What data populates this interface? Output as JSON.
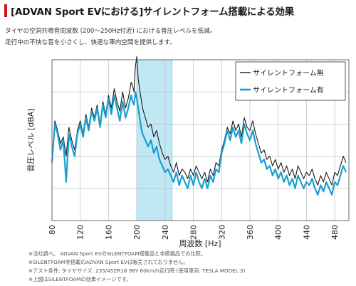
{
  "title": "[ADVAN Sport EVにおける]サイレントフォーム搭載による効果",
  "description": [
    "タイヤの空洞共鳴音周波数 (200〜250Hz付近) における音圧レベルを低減。",
    "走行中の不快な音を小さくし、快適な車内空間を提供します。"
  ],
  "footnotes": [
    "※当社調べ。 ADVAN Sport EVのSILENTFOAM搭載品と非搭載品での比較。",
    "※SILENTFOAM非搭載のADVAN Sport EVは販売されておりません。",
    "※テスト条件: タイヤサイズ: 235/45ZR18 98Y 60km/h走行時 (使用車両: TESLA MODEL 3)",
    "※上図はSILENTFOAMの効果イメージです。"
  ],
  "colors": {
    "accent": "#d0121b",
    "series_without": "#1a1a1a",
    "series_with": "#1a9fd0",
    "highlight_band": "#bfe8f4"
  },
  "chart_data": {
    "type": "line",
    "xlabel": "周波数 [Hz]",
    "ylabel": "音圧レベル [dBA]",
    "xlim": [
      80,
      500
    ],
    "xticks": [
      80,
      120,
      160,
      200,
      240,
      280,
      320,
      360,
      400,
      440,
      480
    ],
    "ylim": [
      0,
      100
    ],
    "yticks_shown": false,
    "grid": true,
    "legend_position": "top-right",
    "highlight_range": [
      200,
      250
    ],
    "series": [
      {
        "name": "サイレントフォーム無",
        "x": [
          80,
          84,
          88,
          92,
          96,
          100,
          104,
          108,
          112,
          116,
          120,
          124,
          128,
          132,
          136,
          140,
          144,
          148,
          152,
          156,
          160,
          164,
          168,
          172,
          176,
          180,
          184,
          188,
          192,
          194,
          196,
          198,
          200,
          202,
          204,
          206,
          208,
          212,
          216,
          220,
          224,
          228,
          232,
          236,
          240,
          244,
          248,
          252,
          256,
          260,
          264,
          268,
          272,
          276,
          280,
          284,
          288,
          292,
          296,
          300,
          304,
          308,
          312,
          316,
          320,
          324,
          328,
          332,
          336,
          340,
          344,
          348,
          352,
          356,
          360,
          364,
          368,
          372,
          376,
          380,
          384,
          388,
          392,
          396,
          400,
          404,
          408,
          412,
          416,
          420,
          424,
          428,
          432,
          436,
          440,
          444,
          448,
          452,
          456,
          460,
          464,
          468,
          472,
          476,
          480,
          484,
          488,
          492,
          496
        ],
        "values": [
          38,
          62,
          56,
          48,
          52,
          40,
          58,
          50,
          44,
          56,
          62,
          54,
          66,
          58,
          70,
          64,
          72,
          60,
          74,
          66,
          78,
          70,
          82,
          74,
          68,
          80,
          70,
          76,
          86,
          84,
          80,
          96,
          102,
          88,
          82,
          76,
          70,
          64,
          58,
          60,
          52,
          56,
          48,
          42,
          38,
          40,
          34,
          30,
          36,
          28,
          32,
          30,
          26,
          32,
          28,
          34,
          30,
          26,
          30,
          24,
          32,
          28,
          36,
          34,
          44,
          50,
          58,
          54,
          62,
          56,
          60,
          52,
          64,
          58,
          56,
          62,
          54,
          48,
          42,
          44,
          38,
          40,
          34,
          38,
          32,
          36,
          30,
          34,
          28,
          32,
          26,
          34,
          30,
          26,
          30,
          28,
          32,
          26,
          22,
          28,
          24,
          30,
          26,
          22,
          30,
          28,
          34,
          40,
          36
        ]
      },
      {
        "name": "サイレントフォーム有",
        "x": [
          80,
          84,
          88,
          92,
          96,
          100,
          104,
          108,
          112,
          116,
          120,
          124,
          128,
          132,
          136,
          140,
          144,
          148,
          152,
          156,
          160,
          164,
          168,
          172,
          176,
          180,
          184,
          188,
          192,
          194,
          196,
          198,
          200,
          202,
          204,
          206,
          208,
          212,
          216,
          220,
          224,
          228,
          232,
          236,
          240,
          244,
          248,
          252,
          256,
          260,
          264,
          268,
          272,
          276,
          280,
          284,
          288,
          292,
          296,
          300,
          304,
          308,
          312,
          316,
          320,
          324,
          328,
          332,
          336,
          340,
          344,
          348,
          352,
          356,
          360,
          364,
          368,
          372,
          376,
          380,
          384,
          388,
          392,
          396,
          400,
          404,
          408,
          412,
          416,
          420,
          424,
          428,
          432,
          436,
          440,
          444,
          448,
          452,
          456,
          460,
          464,
          468,
          472,
          476,
          480,
          484,
          488,
          492,
          496
        ],
        "values": [
          36,
          60,
          54,
          44,
          50,
          24,
          54,
          46,
          40,
          54,
          60,
          52,
          64,
          56,
          68,
          62,
          70,
          58,
          72,
          64,
          76,
          66,
          78,
          70,
          62,
          74,
          64,
          70,
          78,
          74,
          72,
          80,
          76,
          70,
          64,
          58,
          54,
          50,
          46,
          50,
          42,
          46,
          38,
          34,
          30,
          32,
          28,
          24,
          30,
          22,
          28,
          24,
          20,
          28,
          22,
          30,
          24,
          20,
          26,
          20,
          28,
          24,
          32,
          30,
          42,
          48,
          56,
          50,
          58,
          52,
          56,
          48,
          60,
          54,
          50,
          56,
          48,
          42,
          36,
          38,
          32,
          34,
          28,
          32,
          26,
          30,
          24,
          28,
          22,
          26,
          20,
          28,
          24,
          20,
          24,
          22,
          26,
          20,
          16,
          22,
          18,
          24,
          20,
          16,
          24,
          22,
          28,
          34,
          30
        ]
      }
    ]
  }
}
